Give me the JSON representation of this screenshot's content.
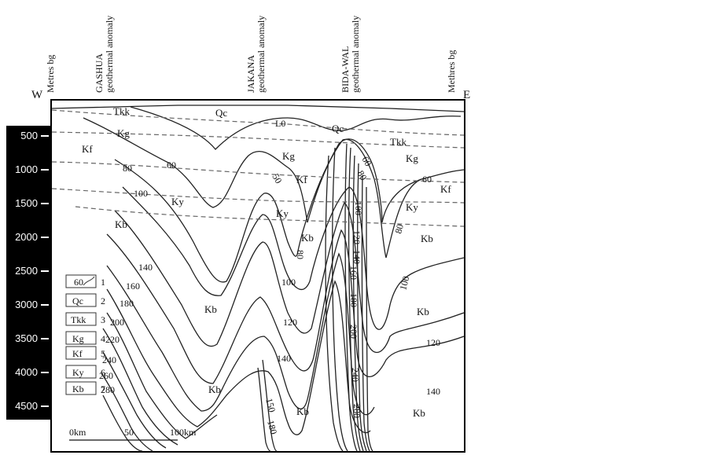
{
  "orientation": {
    "west": "W",
    "east": "E"
  },
  "axis_titles": {
    "left": "Metres bg",
    "right": "Methres bg"
  },
  "anomalies": [
    {
      "name": "GASHUA",
      "sub": "geothermal anomaly"
    },
    {
      "name": "JAKANA",
      "sub": "geothermal anomaly"
    },
    {
      "name": "BIDA-WAL",
      "sub": "geothermal anomaly"
    }
  ],
  "depth_ticks": [
    "500",
    "1000",
    "1500",
    "2000",
    "2500",
    "3000",
    "3500",
    "4000",
    "4500"
  ],
  "formations": {
    "Qc": "Qc",
    "Tkk_top": "Tkk",
    "Tkk": "Tkk",
    "Kg": "Kg",
    "Kf": "Kf",
    "Ky": "Ky",
    "Kb": "Kb"
  },
  "isotherm_labels": [
    "L0",
    "60",
    "50",
    "80",
    "100",
    "120",
    "140",
    "160",
    "180",
    "200",
    "220",
    "240",
    "260",
    "280",
    "150"
  ],
  "legend": [
    {
      "symbol": "60",
      "num": "1"
    },
    {
      "symbol": "Qc",
      "num": "2"
    },
    {
      "symbol": "Tkk",
      "num": "3"
    },
    {
      "symbol": "Kg",
      "num": "4"
    },
    {
      "symbol": "Kf",
      "num": "5"
    },
    {
      "symbol": "Ky",
      "num": "6"
    },
    {
      "symbol": "Kb",
      "num": "7"
    }
  ],
  "scale": {
    "start": "0km",
    "mid": "50",
    "end": "100km"
  }
}
